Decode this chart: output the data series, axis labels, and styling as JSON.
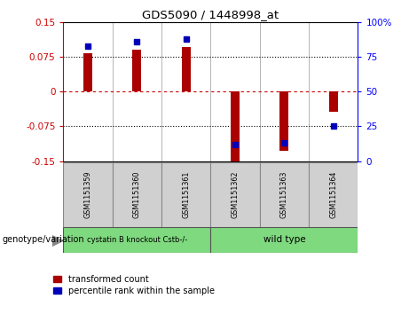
{
  "title": "GDS5090 / 1448998_at",
  "categories": [
    "GSM1151359",
    "GSM1151360",
    "GSM1151361",
    "GSM1151362",
    "GSM1151363",
    "GSM1151364"
  ],
  "red_values": [
    0.083,
    0.092,
    0.097,
    -0.15,
    -0.128,
    -0.044
  ],
  "blue_values_pct": [
    83,
    86,
    88,
    12,
    13,
    25
  ],
  "ylim": [
    -0.15,
    0.15
  ],
  "y2lim": [
    0,
    100
  ],
  "ytick_vals": [
    -0.15,
    -0.075,
    0,
    0.075,
    0.15
  ],
  "ytick_labels": [
    "-0.15",
    "-0.075",
    "0",
    "0.075",
    "0.15"
  ],
  "y2tick_vals": [
    0,
    25,
    50,
    75,
    100
  ],
  "y2tick_labels": [
    "0",
    "25",
    "50",
    "75",
    "100%"
  ],
  "group1_label": "cystatin B knockout Cstb-/-",
  "group2_label": "wild type",
  "group1_color": "#7FD97F",
  "group2_color": "#7FD97F",
  "bar_color": "#AA0000",
  "dot_color": "#0000BB",
  "legend_label_red": "transformed count",
  "legend_label_blue": "percentile rank within the sample",
  "xlabel_genotype": "genotype/variation",
  "bar_width": 0.18,
  "dot_size": 4
}
